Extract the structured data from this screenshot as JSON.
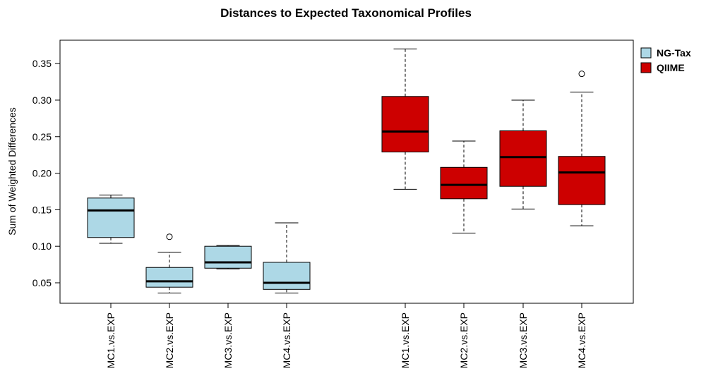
{
  "chart_data": {
    "type": "boxplot",
    "title": "Distances to Expected Taxonomical Profiles",
    "xlabel": "",
    "ylabel": "Sum of Weighted Differences",
    "ylim": [
      0.022,
      0.382
    ],
    "yticks": [
      0.05,
      0.1,
      0.15,
      0.2,
      0.25,
      0.3,
      0.35
    ],
    "ytick_labels": [
      "0.05",
      "0.10",
      "0.15",
      "0.20",
      "0.25",
      "0.30",
      "0.35"
    ],
    "grid": false,
    "legend_position": "top-right, outside plot",
    "colors": {
      "NG-Tax": "#add8e6",
      "QIIME": "#cd0000",
      "border": "#000000"
    },
    "legend": [
      {
        "name": "NG-Tax",
        "color": "#add8e6"
      },
      {
        "name": "QIIME",
        "color": "#cd0000"
      }
    ],
    "boxes": [
      {
        "label": "MC1.vs.EXP",
        "group": "NG-Tax",
        "whisker_low": 0.104,
        "q1": 0.112,
        "median": 0.149,
        "q3": 0.166,
        "whisker_high": 0.17,
        "outliers": []
      },
      {
        "label": "MC2.vs.EXP",
        "group": "NG-Tax",
        "whisker_low": 0.036,
        "q1": 0.044,
        "median": 0.052,
        "q3": 0.071,
        "whisker_high": 0.092,
        "outliers": [
          0.113
        ]
      },
      {
        "label": "MC3.vs.EXP",
        "group": "NG-Tax",
        "whisker_low": 0.069,
        "q1": 0.07,
        "median": 0.078,
        "q3": 0.1,
        "whisker_high": 0.101,
        "outliers": []
      },
      {
        "label": "MC4.vs.EXP",
        "group": "NG-Tax",
        "whisker_low": 0.036,
        "q1": 0.041,
        "median": 0.05,
        "q3": 0.078,
        "whisker_high": 0.132,
        "outliers": []
      },
      {
        "label": "MC1.vs.EXP",
        "group": "QIIME",
        "whisker_low": 0.178,
        "q1": 0.229,
        "median": 0.257,
        "q3": 0.305,
        "whisker_high": 0.37,
        "outliers": []
      },
      {
        "label": "MC2.vs.EXP",
        "group": "QIIME",
        "whisker_low": 0.118,
        "q1": 0.165,
        "median": 0.184,
        "q3": 0.208,
        "whisker_high": 0.244,
        "outliers": []
      },
      {
        "label": "MC3.vs.EXP",
        "group": "QIIME",
        "whisker_low": 0.151,
        "q1": 0.182,
        "median": 0.222,
        "q3": 0.258,
        "whisker_high": 0.3,
        "outliers": []
      },
      {
        "label": "MC4.vs.EXP",
        "group": "QIIME",
        "whisker_low": 0.128,
        "q1": 0.157,
        "median": 0.201,
        "q3": 0.223,
        "whisker_high": 0.311,
        "outliers": [
          0.336
        ]
      }
    ]
  }
}
